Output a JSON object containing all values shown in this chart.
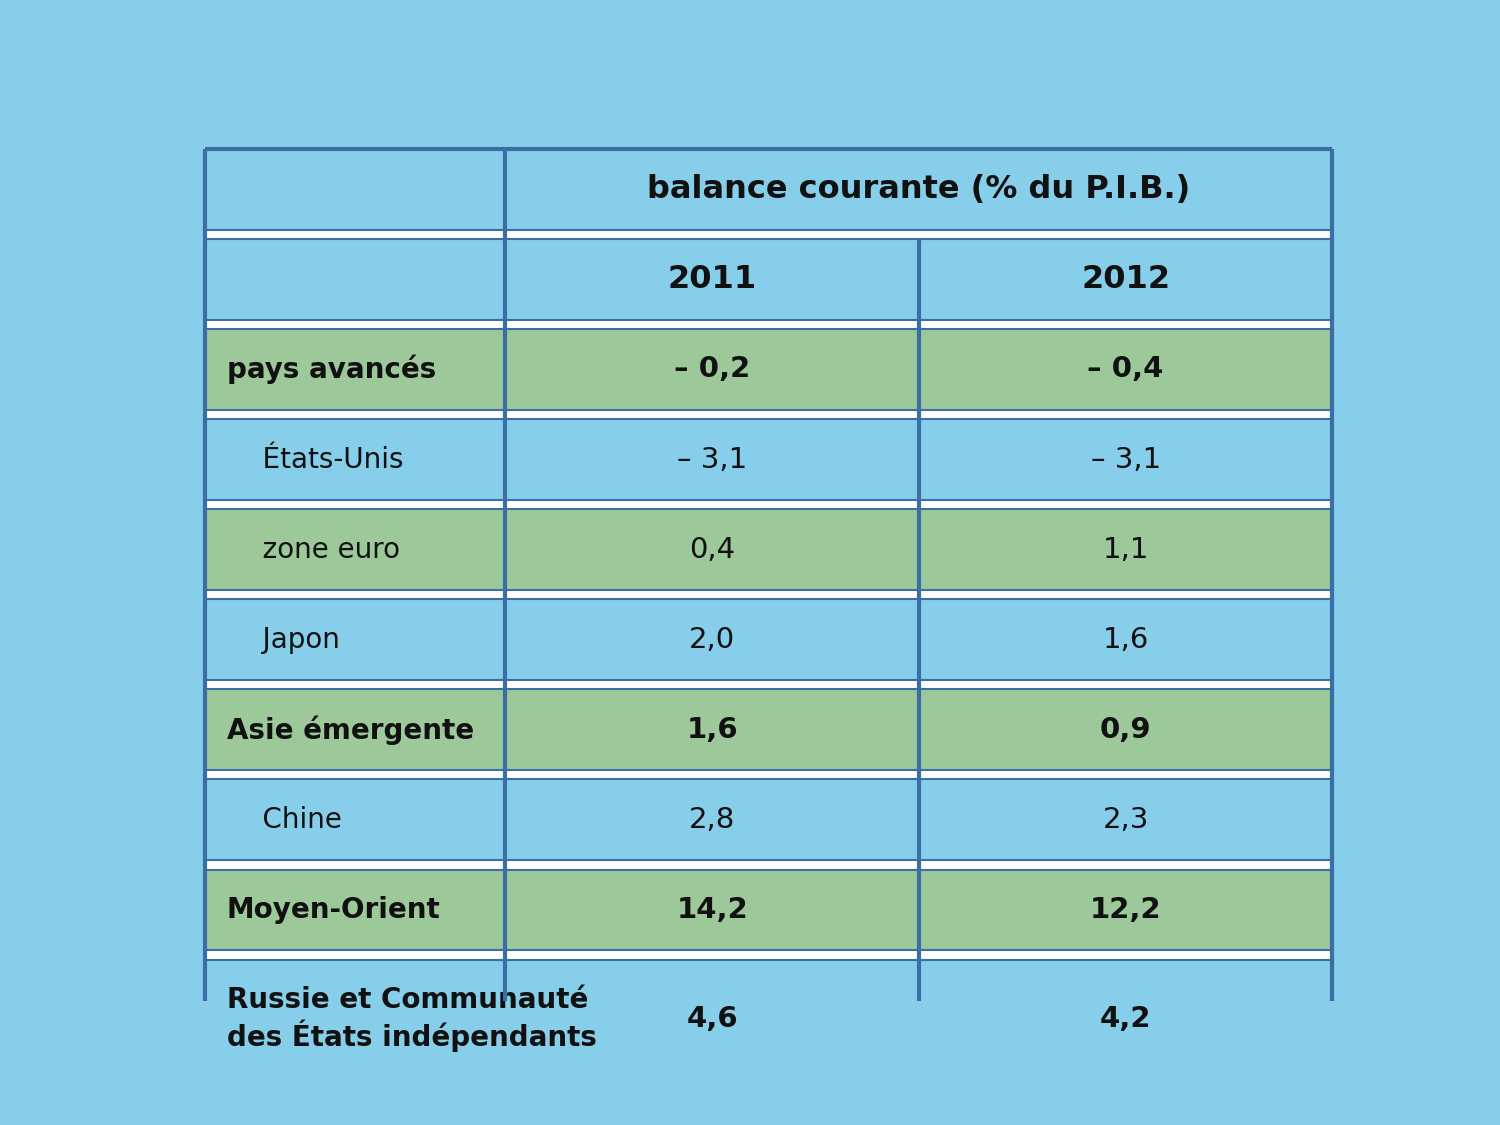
{
  "header_col": "balance courante (% du P.I.B.)",
  "col_headers": [
    "2011",
    "2012"
  ],
  "rows": [
    {
      "label": "pays avancés",
      "v2011": "– 0,2",
      "v2012": "– 0,4",
      "bold": true,
      "row_color": "green"
    },
    {
      "label": "    États-Unis",
      "v2011": "– 3,1",
      "v2012": "– 3,1",
      "bold": false,
      "row_color": "blue"
    },
    {
      "label": "    zone euro",
      "v2011": "0,4",
      "v2012": "1,1",
      "bold": false,
      "row_color": "green"
    },
    {
      "label": "    Japon",
      "v2011": "2,0",
      "v2012": "1,6",
      "bold": false,
      "row_color": "blue"
    },
    {
      "label": "Asie émergente",
      "v2011": "1,6",
      "v2012": "0,9",
      "bold": true,
      "row_color": "green"
    },
    {
      "label": "    Chine",
      "v2011": "2,8",
      "v2012": "2,3",
      "bold": false,
      "row_color": "blue"
    },
    {
      "label": "Moyen-Orient",
      "v2011": "14,2",
      "v2012": "12,2",
      "bold": true,
      "row_color": "green"
    },
    {
      "label": "Russie et Communauté\ndes États indépendants",
      "v2011": "4,6",
      "v2012": "4,2",
      "bold": true,
      "row_color": "blue"
    }
  ],
  "color_blue": "#87CEEB",
  "color_green": "#9DC99A",
  "color_border": "#3A6EA5",
  "color_white": "#FFFFFF",
  "text_color": "#111111",
  "fig_bg": "#87CEEB"
}
